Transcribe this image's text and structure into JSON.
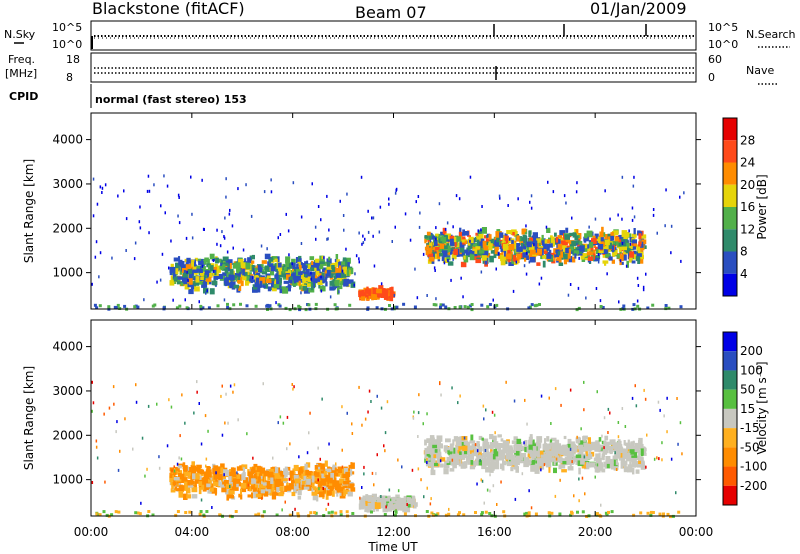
{
  "header": {
    "station": "Blackstone (fitACF)",
    "beam": "Beam 07",
    "date": "01/Jan/2009"
  },
  "side_labels": {
    "nsky": "N.Sky",
    "freq_top": "Freq.",
    "freq_unit": "[MHz]",
    "cpid": "CPID",
    "nsearch": "N.Search",
    "nave": "Nave",
    "nsky_ticks": [
      "10^5",
      "10^0"
    ],
    "nsearch_ticks": [
      "10^5",
      "10^0"
    ],
    "freq_ticks": [
      "18",
      "8"
    ],
    "nave_ticks": [
      "60",
      "0"
    ],
    "mode_text": "normal (fast stereo) 153"
  },
  "chart_data": [
    {
      "type": "heatmap",
      "name": "power-panel",
      "xlabel": "",
      "ylabel": "Slant Range [km]",
      "xlim": [
        0,
        24
      ],
      "ylim": [
        180,
        4600
      ],
      "yticks": [
        "1000",
        "2000",
        "3000",
        "4000"
      ],
      "ytick_values": [
        1000,
        2000,
        3000,
        4000
      ],
      "colorbar": {
        "label": "Power [dB]",
        "ticks": [
          "4",
          "8",
          "12",
          "16",
          "20",
          "24",
          "28"
        ],
        "colors": [
          "#0000e6",
          "#2a4ec0",
          "#2f8a6a",
          "#52b04a",
          "#e6d40a",
          "#ff8c00",
          "#ff4a1a",
          "#e60000"
        ]
      },
      "echo_regions": [
        {
          "t0": 3.1,
          "t1": 10.3,
          "r0": 550,
          "r1": 1400,
          "band": "mixed-low-mid"
        },
        {
          "t0": 10.6,
          "t1": 11.9,
          "r0": 400,
          "r1": 650,
          "band": "high"
        },
        {
          "t0": 13.2,
          "t1": 21.9,
          "r0": 1150,
          "r1": 2000,
          "band": "mixed-mid-high"
        }
      ]
    },
    {
      "type": "heatmap",
      "name": "velocity-panel",
      "xlabel": "Time UT",
      "ylabel": "Slant Range [km]",
      "xlim": [
        0,
        24
      ],
      "ylim": [
        180,
        4600
      ],
      "xticks": [
        "00:00",
        "04:00",
        "08:00",
        "12:00",
        "16:00",
        "20:00",
        "00:00"
      ],
      "xtick_values": [
        0,
        4,
        8,
        12,
        16,
        20,
        24
      ],
      "yticks": [
        "1000",
        "2000",
        "3000",
        "4000"
      ],
      "ytick_values": [
        1000,
        2000,
        3000,
        4000
      ],
      "colorbar": {
        "label": "Velocity [m s⁻¹]",
        "ticks": [
          "-200",
          "-100",
          "-50",
          "-15",
          "15",
          "50",
          "100",
          "200"
        ],
        "colors": [
          "#e60000",
          "#ff5a00",
          "#ff8c00",
          "#ffb020",
          "#c8c8c0",
          "#58c040",
          "#2f8a6a",
          "#2a4ec0",
          "#0000e6"
        ]
      },
      "echo_regions": [
        {
          "t0": 3.1,
          "t1": 10.3,
          "r0": 550,
          "r1": 1400,
          "band": "negative"
        },
        {
          "t0": 10.6,
          "t1": 12.8,
          "r0": 300,
          "r1": 650,
          "band": "near-zero"
        },
        {
          "t0": 13.2,
          "t1": 21.9,
          "r0": 1150,
          "r1": 2000,
          "band": "near-zero"
        }
      ]
    }
  ]
}
